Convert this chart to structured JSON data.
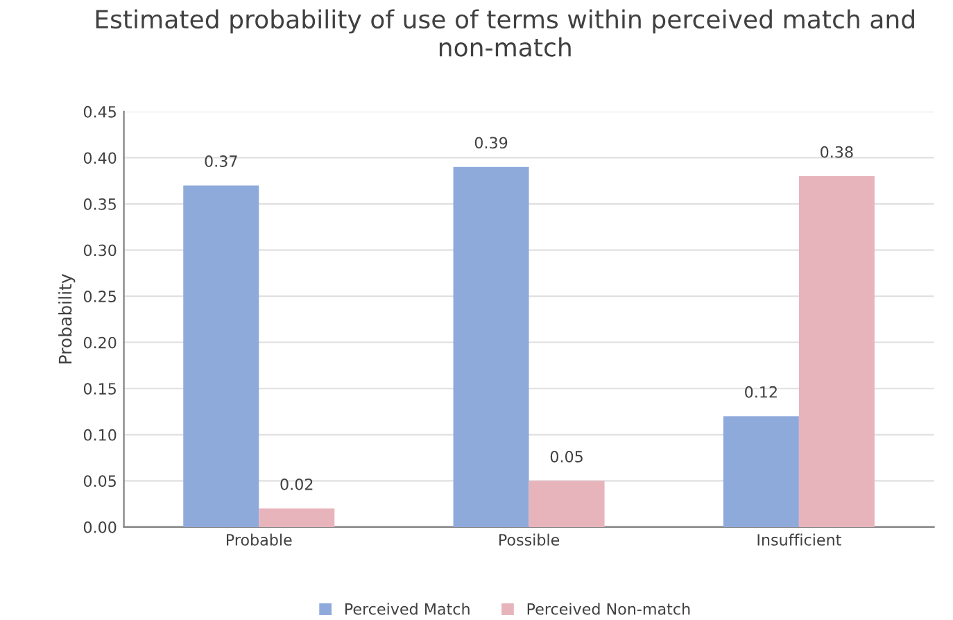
{
  "chart_data": {
    "type": "bar",
    "title": "Estimated probability of use of terms within perceived match and non-match",
    "ylabel": "Probability",
    "categories": [
      "Probable",
      "Possible",
      "Insufficient"
    ],
    "series": [
      {
        "name": "Perceived Match",
        "color": "#8eaadb",
        "values": [
          0.37,
          0.39,
          0.12
        ]
      },
      {
        "name": "Perceived Non-match",
        "color": "#e8b4bc",
        "values": [
          0.02,
          0.05,
          0.38
        ]
      }
    ],
    "ylim": [
      0,
      0.45
    ],
    "yticks": [
      {
        "value": 0,
        "label": "0.00"
      },
      {
        "value": 0.05,
        "label": "0.05"
      },
      {
        "value": 0.1,
        "label": "0.10"
      },
      {
        "value": 0.15,
        "label": "0.15"
      },
      {
        "value": 0.2,
        "label": "0.20"
      },
      {
        "value": 0.25,
        "label": "0.25"
      },
      {
        "value": 0.3,
        "label": "0.30"
      },
      {
        "value": 0.35,
        "label": "0.35"
      },
      {
        "value": 0.4,
        "label": "0.40"
      },
      {
        "value": 0.45,
        "label": "0.45"
      }
    ],
    "grid": "y",
    "legend": "bottom",
    "data_labels": true
  }
}
